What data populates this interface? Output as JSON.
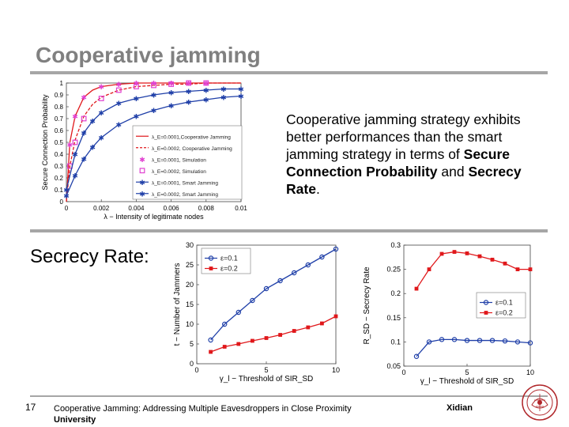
{
  "slide": {
    "title": "Cooperative jamming",
    "description_parts": [
      "Cooperative jamming strategy exhibits better performances than the smart jamming strategy in terms of ",
      "Secure Connection Probability",
      " and ",
      "Secrecy Rate",
      "."
    ],
    "section_label": "Secrecy Rate:",
    "footer": {
      "page_number": "17",
      "title_line1": "Cooperative Jamming:  Addressing Multiple Eavesdroppers in Close Proximity",
      "title_line2": "University",
      "organization": "Xidian"
    },
    "colors": {
      "title": "#808080",
      "rule": "#a6a6a6",
      "red": "#e0181b",
      "blue": "#1f3fa8",
      "magenta": "#e040d0"
    }
  },
  "chart_data": [
    {
      "type": "line",
      "xlabel": "λ − Intensity of legitimate nodes",
      "ylabel": "Secure Connection Probability",
      "xlim": [
        0,
        0.01
      ],
      "ylim": [
        0,
        1
      ],
      "xticks": [
        "0",
        "0.002",
        "0.004",
        "0.006",
        "0.008",
        "0.01"
      ],
      "yticks": [
        "0",
        "0.1",
        "0.2",
        "0.3",
        "0.4",
        "0.5",
        "0.6",
        "0.7",
        "0.8",
        "0.9",
        "1"
      ],
      "legend_position": "right",
      "series": [
        {
          "name": "λ_E=0.0001,Cooperative Jamming",
          "color": "#e0181b",
          "style": "solid",
          "x": [
            0,
            0.0002,
            0.0005,
            0.001,
            0.0015,
            0.002,
            0.003,
            0.004,
            0.005,
            0.006,
            0.007,
            0.008,
            0.009,
            0.01
          ],
          "values": [
            0,
            0.5,
            0.72,
            0.88,
            0.94,
            0.97,
            0.99,
            1,
            1,
            1,
            1,
            1,
            1,
            1
          ]
        },
        {
          "name": "λ_E=0.0002, Cooperative Jamming",
          "color": "#e0181b",
          "style": "dashed",
          "x": [
            0,
            0.0002,
            0.0005,
            0.001,
            0.0015,
            0.002,
            0.003,
            0.004,
            0.005,
            0.006,
            0.007,
            0.008,
            0.009,
            0.01
          ],
          "values": [
            0,
            0.3,
            0.52,
            0.72,
            0.82,
            0.88,
            0.94,
            0.97,
            0.98,
            0.99,
            0.99,
            1,
            1,
            1
          ]
        },
        {
          "name": "λ_E=0.0001, Simulation",
          "color": "#e040d0",
          "style": "star-markers",
          "x": [
            0.0002,
            0.0005,
            0.001,
            0.002,
            0.003,
            0.004,
            0.005,
            0.006,
            0.007,
            0.008
          ],
          "values": [
            0.48,
            0.72,
            0.88,
            0.97,
            0.99,
            1,
            1,
            1,
            1,
            1
          ]
        },
        {
          "name": "λ_E=0.0002, Simulation",
          "color": "#e040d0",
          "style": "square-markers",
          "x": [
            0.0002,
            0.0005,
            0.001,
            0.002,
            0.003,
            0.004,
            0.005,
            0.006,
            0.007,
            0.008
          ],
          "values": [
            0.3,
            0.5,
            0.7,
            0.87,
            0.94,
            0.97,
            0.98,
            0.99,
            1,
            1
          ]
        },
        {
          "name": "λ_E=0.0001, Smart Jamming",
          "color": "#1f3fa8",
          "style": "star-markers",
          "x": [
            0,
            0.0005,
            0.001,
            0.0015,
            0.002,
            0.003,
            0.004,
            0.005,
            0.006,
            0.007,
            0.008,
            0.009,
            0.01
          ],
          "values": [
            0.1,
            0.4,
            0.58,
            0.68,
            0.75,
            0.83,
            0.87,
            0.9,
            0.92,
            0.93,
            0.94,
            0.95,
            0.95
          ]
        },
        {
          "name": "λ_E=0.0002, Smart Jamming",
          "color": "#1f3fa8",
          "style": "star-markers",
          "x": [
            0,
            0.0005,
            0.001,
            0.0015,
            0.002,
            0.003,
            0.004,
            0.005,
            0.006,
            0.007,
            0.008,
            0.009,
            0.01
          ],
          "values": [
            0.05,
            0.22,
            0.36,
            0.46,
            0.54,
            0.65,
            0.72,
            0.77,
            0.81,
            0.84,
            0.86,
            0.88,
            0.89
          ]
        }
      ]
    },
    {
      "type": "line",
      "xlabel": "γ_l − Threshold of SIR_SD",
      "ylabel": "t − Number of Jammers",
      "xlim": [
        0,
        10
      ],
      "ylim": [
        0,
        30
      ],
      "xticks": [
        "0",
        "5",
        "10"
      ],
      "yticks": [
        "0",
        "5",
        "10",
        "15",
        "20",
        "25",
        "30"
      ],
      "legend_position": "top-left",
      "series": [
        {
          "name": "ε=0.1",
          "color": "#1f3fa8",
          "marker": "circle",
          "x": [
            1,
            2,
            3,
            4,
            5,
            6,
            7,
            8,
            9,
            10
          ],
          "values": [
            6,
            10,
            13,
            16,
            19,
            21,
            23,
            25,
            27,
            29
          ]
        },
        {
          "name": "ε=0.2",
          "color": "#e0181b",
          "marker": "square",
          "x": [
            1,
            2,
            3,
            4,
            5,
            6,
            7,
            8,
            9,
            10
          ],
          "values": [
            3,
            4.3,
            5,
            5.8,
            6.5,
            7.3,
            8.3,
            9.2,
            10.2,
            12
          ]
        }
      ]
    },
    {
      "type": "line",
      "xlabel": "γ_l − Threshold of SIR_SD",
      "ylabel": "R_SD − Secrecy Rate",
      "xlim": [
        0,
        10
      ],
      "ylim": [
        0.05,
        0.3
      ],
      "xticks": [
        "0",
        "5",
        "10"
      ],
      "yticks": [
        "0.05",
        "0.1",
        "0.15",
        "0.2",
        "0.25",
        "0.3"
      ],
      "legend_position": "right",
      "series": [
        {
          "name": "ε=0.1",
          "color": "#1f3fa8",
          "marker": "circle",
          "x": [
            1,
            2,
            3,
            4,
            5,
            6,
            7,
            8,
            9,
            10
          ],
          "values": [
            0.07,
            0.1,
            0.105,
            0.105,
            0.103,
            0.103,
            0.103,
            0.102,
            0.1,
            0.098
          ]
        },
        {
          "name": "ε=0.2",
          "color": "#e0181b",
          "marker": "square",
          "x": [
            1,
            2,
            3,
            4,
            5,
            6,
            7,
            8,
            9,
            10
          ],
          "values": [
            0.21,
            0.25,
            0.282,
            0.286,
            0.283,
            0.277,
            0.27,
            0.262,
            0.25,
            0.25
          ]
        }
      ]
    }
  ]
}
